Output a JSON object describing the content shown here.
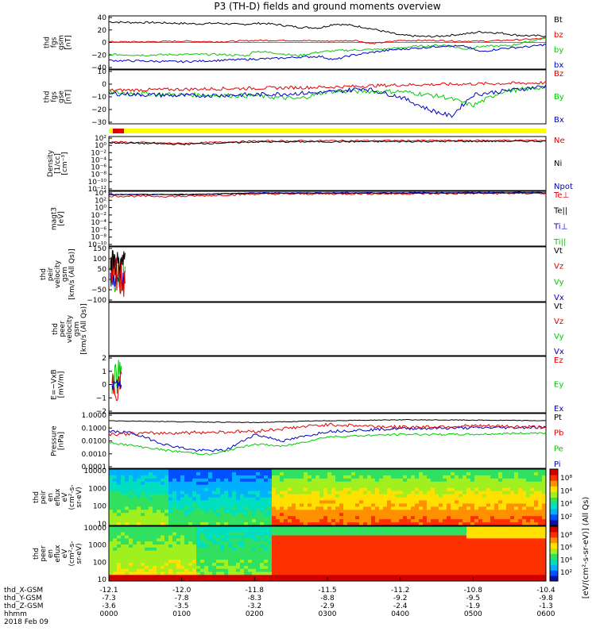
{
  "title": "P3 (TH-D) fields and ground moments overview",
  "colors": {
    "black": "#000000",
    "red": "#e00000",
    "green": "#00cc00",
    "blue": "#0000c8",
    "yellow": "#ffff00"
  },
  "x_axis": {
    "rows": [
      {
        "label": "thd_X-GSM",
        "values": [
          "-12.1",
          "-12.0",
          "-11.8",
          "-11.5",
          "-11.2",
          "-10.8",
          "-10.4"
        ]
      },
      {
        "label": "thd_Y-GSM",
        "values": [
          "-7.3",
          "-7.8",
          "-8.3",
          "-8.8",
          "-9.2",
          "-9.5",
          "-9.8"
        ]
      },
      {
        "label": "thd_Z-GSM",
        "values": [
          "-3.6",
          "-3.5",
          "-3.2",
          "-2.9",
          "-2.4",
          "-1.9",
          "-1.3"
        ]
      },
      {
        "label": "hhmm",
        "values": [
          "0000",
          "0100",
          "0200",
          "0300",
          "0400",
          "0500",
          "0600"
        ]
      }
    ],
    "date": "2018 Feb 09"
  },
  "panels": [
    {
      "id": "fgs_gsm",
      "ylabel": [
        "thd",
        "fgs",
        "gsm",
        "[nT]"
      ],
      "ticks": [
        "40",
        "20",
        "0",
        "−20",
        "−40"
      ],
      "legend": [
        {
          "text": "Bt",
          "color": "#000000"
        },
        {
          "text": "bz",
          "color": "#e00000"
        },
        {
          "text": "by",
          "color": "#00cc00"
        },
        {
          "text": "bx",
          "color": "#0000c8"
        }
      ]
    },
    {
      "id": "fgs_gse",
      "ylabel": [
        "thd",
        "fgs",
        "gse",
        "[nT]"
      ],
      "ticks": [
        "10",
        "0",
        "−10",
        "−20",
        "−30"
      ],
      "legend": [
        {
          "text": "Bz",
          "color": "#e00000"
        },
        {
          "text": "By",
          "color": "#00cc00"
        },
        {
          "text": "Bx",
          "color": "#0000c8"
        }
      ]
    },
    {
      "id": "density",
      "ylabel": [
        "Density",
        "[1/cc]",
        "[cm⁻³]"
      ],
      "ticks": [
        "10²",
        "10⁰",
        "10⁻²",
        "10⁻⁴",
        "10⁻⁶",
        "10⁻⁸",
        "10⁻¹⁰",
        "10⁻¹²"
      ],
      "legend": [
        {
          "text": "Ne",
          "color": "#e00000"
        },
        {
          "text": "Ni",
          "color": "#000000"
        },
        {
          "text": "Npot",
          "color": "#0000c8"
        }
      ]
    },
    {
      "id": "temperature",
      "ylabel": [
        "magt3",
        "[eV]"
      ],
      "ticks": [
        "10⁴",
        "10²",
        "10⁰",
        "10⁻²",
        "10⁻⁴",
        "10⁻⁶",
        "10⁻⁸",
        "10⁻¹⁰"
      ],
      "legend": [
        {
          "text": "Te⊥",
          "color": "#e00000"
        },
        {
          "text": "Te||",
          "color": "#000000"
        },
        {
          "text": "Ti⊥",
          "color": "#0000c8"
        },
        {
          "text": "Ti||",
          "color": "#00cc00"
        }
      ]
    },
    {
      "id": "peir_vel",
      "ylabel": [
        "thd",
        "peir",
        "velocity",
        "gsm",
        "[km/s (All Qs)]"
      ],
      "ticks": [
        "150",
        "100",
        "50",
        "0",
        "−50",
        "−100"
      ],
      "legend": [
        {
          "text": "Vt",
          "color": "#000000"
        },
        {
          "text": "Vz",
          "color": "#e00000"
        },
        {
          "text": "Vy",
          "color": "#00cc00"
        },
        {
          "text": "Vx",
          "color": "#0000c8"
        }
      ]
    },
    {
      "id": "peer_vel",
      "ylabel": [
        "thd",
        "peer",
        "velocity",
        "gsm",
        "[km/s (All Qs)]"
      ],
      "ticks": [],
      "legend": [
        {
          "text": "Vt",
          "color": "#000000"
        },
        {
          "text": "Vz",
          "color": "#e00000"
        },
        {
          "text": "Vy",
          "color": "#00cc00"
        },
        {
          "text": "Vx",
          "color": "#0000c8"
        }
      ]
    },
    {
      "id": "efield",
      "ylabel": [
        "E=−VxB",
        "[mV/m]"
      ],
      "ticks": [
        "2",
        "1",
        "0",
        "−1",
        "−2"
      ],
      "legend": [
        {
          "text": "Ez",
          "color": "#e00000"
        },
        {
          "text": "Ey",
          "color": "#00cc00"
        },
        {
          "text": "Ex",
          "color": "#0000c8"
        }
      ]
    },
    {
      "id": "pressure",
      "ylabel": [
        "Pressure",
        "[nPa]"
      ],
      "ticks": [
        "1.0000",
        "0.1000",
        "0.0100",
        "0.0010",
        "0.0001"
      ],
      "legend": [
        {
          "text": "Pt",
          "color": "#000000"
        },
        {
          "text": "Pb",
          "color": "#e00000"
        },
        {
          "text": "Pe",
          "color": "#00cc00"
        },
        {
          "text": "Pi",
          "color": "#0000c8"
        }
      ]
    },
    {
      "id": "peir_spec",
      "ylabel": [
        "thd",
        "peir",
        "en",
        "eflux",
        "eV",
        "(cm²-s-",
        "sr-eV)"
      ],
      "ticks": [
        "10000",
        "1000",
        "100",
        "10"
      ],
      "legend": []
    },
    {
      "id": "peer_spec",
      "ylabel": [
        "thd",
        "peer",
        "en",
        "eflux",
        "eV",
        "(cm²-s-",
        "sr-eV)"
      ],
      "ticks": [
        "10000",
        "1000",
        "100",
        "10"
      ],
      "legend": []
    }
  ],
  "colorbar": {
    "label": "[eV/(cm²-s-sr-eV)] (All Qs)",
    "top_ticks": [
      "10⁸",
      "10⁴",
      "10⁴",
      "10²"
    ],
    "bottom_ticks": [
      "10⁸",
      "10⁶",
      "10⁴",
      "10²"
    ]
  },
  "chart_data": {
    "type": "line",
    "x_range_hhmm": [
      "0000",
      "0600"
    ],
    "bt_nT": [
      [
        0,
        31
      ],
      [
        0.3,
        30
      ],
      [
        0.6,
        30
      ],
      [
        0.9,
        29
      ],
      [
        1.2,
        28
      ],
      [
        1.5,
        29
      ],
      [
        1.8,
        27
      ],
      [
        2.1,
        29
      ],
      [
        2.3,
        27
      ],
      [
        2.6,
        23
      ],
      [
        2.9,
        22
      ],
      [
        3.1,
        28
      ],
      [
        3.3,
        26
      ],
      [
        3.5,
        23
      ],
      [
        3.8,
        16
      ],
      [
        4.0,
        11
      ],
      [
        4.3,
        9
      ],
      [
        4.5,
        9
      ],
      [
        4.7,
        11
      ],
      [
        4.9,
        13
      ],
      [
        5.1,
        16
      ],
      [
        5.4,
        14
      ],
      [
        5.6,
        11
      ],
      [
        5.8,
        10
      ],
      [
        6.0,
        10
      ]
    ],
    "bz_nT": [
      [
        0,
        1
      ],
      [
        0.5,
        1
      ],
      [
        1.0,
        2
      ],
      [
        1.5,
        1
      ],
      [
        2.0,
        3
      ],
      [
        2.5,
        3
      ],
      [
        3.0,
        2
      ],
      [
        3.4,
        3
      ],
      [
        3.6,
        -2
      ],
      [
        4.0,
        3
      ],
      [
        4.5,
        3
      ],
      [
        4.8,
        2
      ],
      [
        5.2,
        2
      ],
      [
        5.6,
        4
      ],
      [
        6.0,
        6
      ]
    ],
    "by_nT": [
      [
        0,
        -18
      ],
      [
        0.5,
        -19
      ],
      [
        1.0,
        -18
      ],
      [
        1.5,
        -18
      ],
      [
        1.9,
        -20
      ],
      [
        2.0,
        -13
      ],
      [
        2.3,
        -16
      ],
      [
        2.6,
        -20
      ],
      [
        2.9,
        -14
      ],
      [
        3.2,
        -12
      ],
      [
        3.5,
        -11
      ],
      [
        3.8,
        -10
      ],
      [
        4.2,
        -6
      ],
      [
        4.6,
        -4
      ],
      [
        4.9,
        -10
      ],
      [
        5.1,
        -6
      ],
      [
        5.5,
        -5
      ],
      [
        6.0,
        7
      ]
    ],
    "bx_nT": [
      [
        0,
        -27
      ],
      [
        0.5,
        -28
      ],
      [
        1.0,
        -29
      ],
      [
        1.5,
        -27
      ],
      [
        2.0,
        -25
      ],
      [
        2.3,
        -24
      ],
      [
        2.6,
        -22
      ],
      [
        2.9,
        -21
      ],
      [
        3.1,
        -26
      ],
      [
        3.3,
        -20
      ],
      [
        3.6,
        -15
      ],
      [
        3.9,
        -11
      ],
      [
        4.3,
        -8
      ],
      [
        4.6,
        -5
      ],
      [
        4.9,
        -6
      ],
      [
        5.1,
        -14
      ],
      [
        5.4,
        -9
      ],
      [
        5.8,
        -6
      ],
      [
        6.0,
        -3
      ]
    ],
    "pressure_pt_nPa": [
      [
        0,
        0.3
      ],
      [
        1,
        0.25
      ],
      [
        2,
        0.22
      ],
      [
        3,
        0.3
      ],
      [
        4,
        0.35
      ],
      [
        5,
        0.33
      ],
      [
        6,
        0.3
      ]
    ],
    "pressure_pi_nPa": [
      [
        0,
        0.05
      ],
      [
        0.3,
        0.04
      ],
      [
        0.8,
        0.005
      ],
      [
        1.2,
        0.002
      ],
      [
        1.6,
        0.002
      ],
      [
        2.0,
        0.03
      ],
      [
        2.4,
        0.01
      ],
      [
        3.0,
        0.05
      ],
      [
        4.0,
        0.08
      ],
      [
        5.0,
        0.09
      ],
      [
        6.0,
        0.1
      ]
    ],
    "pressure_pe_nPa": [
      [
        0,
        0.008
      ],
      [
        0.8,
        0.002
      ],
      [
        1.4,
        0.001
      ],
      [
        2.0,
        0.006
      ],
      [
        2.4,
        0.004
      ],
      [
        3.0,
        0.02
      ],
      [
        4.0,
        0.03
      ],
      [
        5.0,
        0.03
      ],
      [
        6.0,
        0.04
      ]
    ]
  }
}
